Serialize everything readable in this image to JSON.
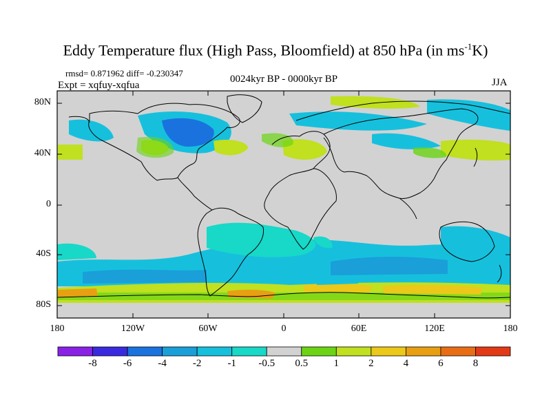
{
  "figure": {
    "title_main": "Eddy Temperature flux (High Pass, Bloomfield) at 850 hPa (in ms",
    "title_sup": "-1",
    "title_end": "K)",
    "rmsd_line": "rmsd= 0.871962 diff= -0.230347",
    "expt_line": "Expt = xqfuy-xqfua",
    "period": "0024kyr BP - 0000kyr BP",
    "season": "JJA"
  },
  "axes": {
    "lat_labels": [
      "80N",
      "40N",
      "0",
      "40S",
      "80S"
    ],
    "lon_labels": [
      "180",
      "120W",
      "60W",
      "0",
      "60E",
      "120E",
      "180"
    ]
  },
  "colorbar": {
    "labels": [
      "-8",
      "-6",
      "-4",
      "-2",
      "-1",
      "-0.5",
      "0.5",
      "1",
      "2",
      "4",
      "6",
      "8"
    ],
    "colors": [
      "#8a22e6",
      "#3a2adf",
      "#1a72df",
      "#1a9fd9",
      "#16c0dd",
      "#18d8c8",
      "#d2d2d2",
      "#6cd414",
      "#c0e020",
      "#ebc81a",
      "#e8a012",
      "#e86e16",
      "#e23a16"
    ]
  },
  "map_colors": {
    "background": "#d2d2d2",
    "coast": "#000000"
  }
}
